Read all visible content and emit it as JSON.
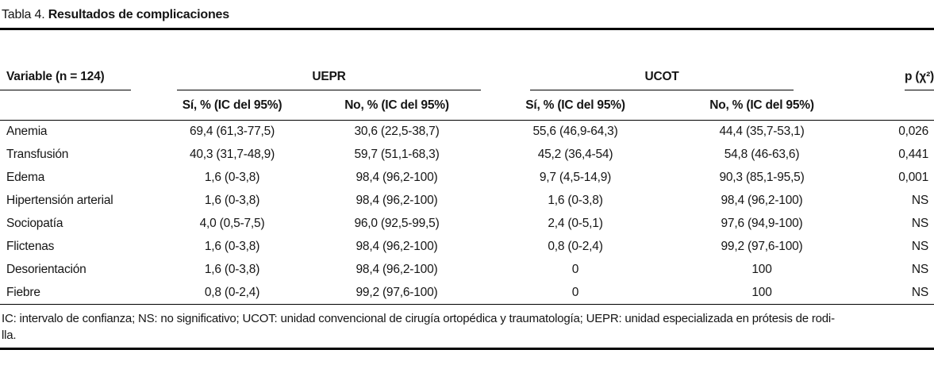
{
  "caption": {
    "label": "Tabla 4.",
    "title": "Resultados de complicaciones"
  },
  "table": {
    "variable_header": "Variable (n = 124)",
    "groups": [
      {
        "label": "UEPR",
        "sub": [
          "Sí, % (IC del 95%)",
          "No, % (IC del 95%)"
        ]
      },
      {
        "label": "UCOT",
        "sub": [
          "Sí, % (IC del 95%)",
          "No, % (IC del 95%)"
        ]
      }
    ],
    "p_header": "p (χ²)",
    "rows": [
      {
        "variable": "Anemia",
        "uepr_si": "69,4 (61,3-77,5)",
        "uepr_no": "30,6 (22,5-38,7)",
        "ucot_si": "55,6 (46,9-64,3)",
        "ucot_no": "44,4 (35,7-53,1)",
        "p": "0,026"
      },
      {
        "variable": "Transfusión",
        "uepr_si": "40,3 (31,7-48,9)",
        "uepr_no": "59,7 (51,1-68,3)",
        "ucot_si": "45,2 (36,4-54)",
        "ucot_no": "54,8 (46-63,6)",
        "p": "0,441"
      },
      {
        "variable": "Edema",
        "uepr_si": "1,6 (0-3,8)",
        "uepr_no": "98,4 (96,2-100)",
        "ucot_si": "9,7 (4,5-14,9)",
        "ucot_no": "90,3 (85,1-95,5)",
        "p": "0,001"
      },
      {
        "variable": "Hipertensión arterial",
        "uepr_si": "1,6 (0-3,8)",
        "uepr_no": "98,4 (96,2-100)",
        "ucot_si": "1,6 (0-3,8)",
        "ucot_no": "98,4 (96,2-100)",
        "p": "NS"
      },
      {
        "variable": "Sociopatía",
        "uepr_si": "4,0 (0,5-7,5)",
        "uepr_no": "96,0 (92,5-99,5)",
        "ucot_si": "2,4 (0-5,1)",
        "ucot_no": "97,6 (94,9-100)",
        "p": "NS"
      },
      {
        "variable": "Flictenas",
        "uepr_si": "1,6 (0-3,8)",
        "uepr_no": "98,4 (96,2-100)",
        "ucot_si": "0,8 (0-2,4)",
        "ucot_no": "99,2 (97,6-100)",
        "p": "NS"
      },
      {
        "variable": "Desorientación",
        "uepr_si": "1,6 (0-3,8)",
        "uepr_no": "98,4 (96,2-100)",
        "ucot_si": "0",
        "ucot_no": "100",
        "p": "NS"
      },
      {
        "variable": "Fiebre",
        "uepr_si": "0,8 (0-2,4)",
        "uepr_no": "99,2 (97,6-100)",
        "ucot_si": "0",
        "ucot_no": "100",
        "p": "NS"
      }
    ]
  },
  "footnote": {
    "lines": [
      "IC: intervalo de confianza; NS: no significativo; UCOT: unidad convencional de cirugía ortopédica y traumatología; UEPR: unidad especializada en prótesis de rodi-",
      "lla."
    ]
  }
}
